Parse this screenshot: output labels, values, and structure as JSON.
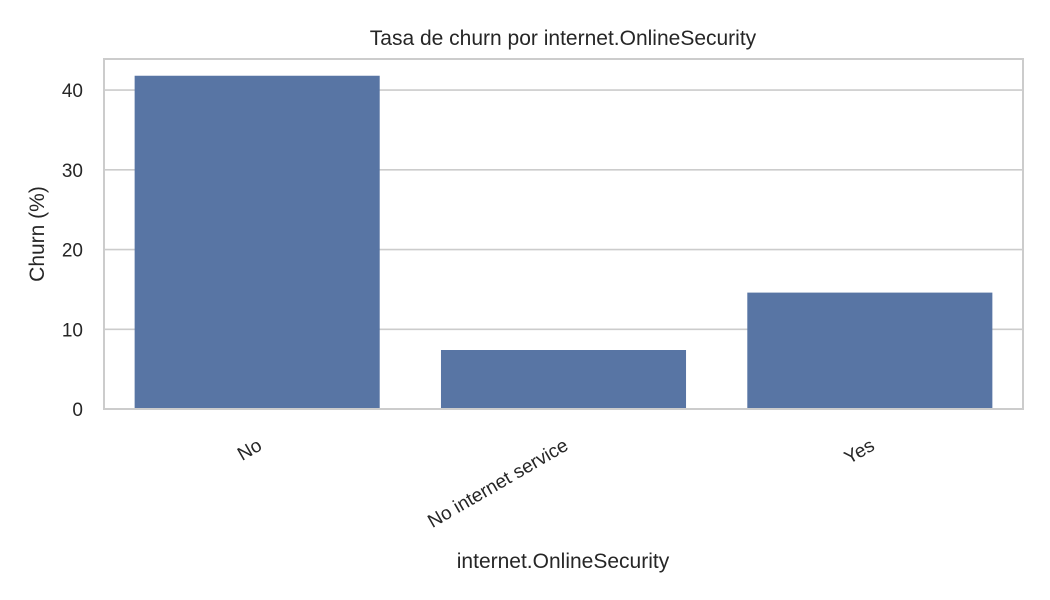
{
  "chart_data": {
    "type": "bar",
    "title": "Tasa de churn por internet.OnlineSecurity",
    "xlabel": "internet.OnlineSecurity",
    "ylabel": "Churn (%)",
    "categories": [
      "No",
      "No internet service",
      "Yes"
    ],
    "values": [
      41.8,
      7.4,
      14.6
    ],
    "ylim": [
      0,
      43.9
    ],
    "yticks": [
      0,
      10,
      20,
      30,
      40
    ],
    "grid": "y",
    "legend": "none",
    "colors": {
      "bar": "#5875a4",
      "grid": "#cccccc",
      "axes_edge": "#cccccc",
      "text": "#262626",
      "background": "#ffffff"
    }
  }
}
